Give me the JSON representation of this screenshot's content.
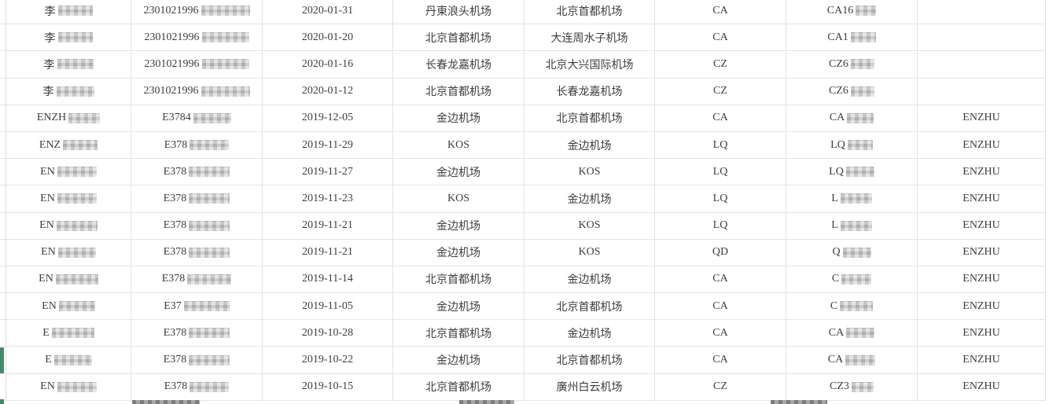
{
  "table": {
    "rows": [
      {
        "name_prefix": "李",
        "name_blur": 44,
        "id_prefix": "2301021996",
        "id_blur": 62,
        "date": "2020-01-31",
        "departure": "丹東浪头机场",
        "arrival": "北京首都机场",
        "airline": "CA",
        "flight_prefix": "CA16",
        "flight_blur": 26,
        "agent": ""
      },
      {
        "name_prefix": "李",
        "name_blur": 44,
        "id_prefix": "2301021996",
        "id_blur": 60,
        "date": "2020-01-20",
        "departure": "北京首都机场",
        "arrival": "大连周水子机场",
        "airline": "CA",
        "flight_prefix": "CA1",
        "flight_blur": 32,
        "agent": ""
      },
      {
        "name_prefix": "李",
        "name_blur": 46,
        "id_prefix": "2301021996",
        "id_blur": 60,
        "date": "2020-01-16",
        "departure": "长春龙嘉机场",
        "arrival": "北京大兴国际机场",
        "airline": "CZ",
        "flight_prefix": "CZ6",
        "flight_blur": 30,
        "agent": ""
      },
      {
        "name_prefix": "李",
        "name_blur": 48,
        "id_prefix": "2301021996",
        "id_blur": 62,
        "date": "2020-01-12",
        "departure": "北京首都机场",
        "arrival": "长春龙嘉机场",
        "airline": "CZ",
        "flight_prefix": "CZ6",
        "flight_blur": 30,
        "agent": ""
      },
      {
        "name_prefix": "ENZH",
        "name_blur": 40,
        "id_prefix": "E3784",
        "id_blur": 48,
        "date": "2019-12-05",
        "departure": "金边机场",
        "arrival": "北京首都机场",
        "airline": "CA",
        "flight_prefix": "CA",
        "flight_blur": 34,
        "agent": "ENZHU"
      },
      {
        "name_prefix": "ENZ",
        "name_blur": 44,
        "id_prefix": "E378",
        "id_blur": 50,
        "date": "2019-11-29",
        "departure": "KOS",
        "arrival": "金边机场",
        "airline": "LQ",
        "flight_prefix": "LQ",
        "flight_blur": 32,
        "agent": "ENZHU"
      },
      {
        "name_prefix": "EN",
        "name_blur": 50,
        "id_prefix": "E378",
        "id_blur": 52,
        "date": "2019-11-27",
        "departure": "金边机场",
        "arrival": "KOS",
        "airline": "LQ",
        "flight_prefix": "LQ",
        "flight_blur": 36,
        "agent": "ENZHU"
      },
      {
        "name_prefix": "EN",
        "name_blur": 50,
        "id_prefix": "E378",
        "id_blur": 52,
        "date": "2019-11-23",
        "departure": "KOS",
        "arrival": "金边机场",
        "airline": "LQ",
        "flight_prefix": "L",
        "flight_blur": 40,
        "agent": "ENZHU"
      },
      {
        "name_prefix": "EN",
        "name_blur": 52,
        "id_prefix": "E378",
        "id_blur": 52,
        "date": "2019-11-21",
        "departure": "金边机场",
        "arrival": "KOS",
        "airline": "LQ",
        "flight_prefix": "L",
        "flight_blur": 40,
        "agent": "ENZHU"
      },
      {
        "name_prefix": "EN",
        "name_blur": 48,
        "id_prefix": "E378",
        "id_blur": 52,
        "date": "2019-11-21",
        "departure": "金边机场",
        "arrival": "KOS",
        "airline": "QD",
        "flight_prefix": "Q",
        "flight_blur": 36,
        "agent": "ENZHU"
      },
      {
        "name_prefix": "EN",
        "name_blur": 54,
        "id_prefix": "E378",
        "id_blur": 56,
        "date": "2019-11-14",
        "departure": "北京首都机场",
        "arrival": "金边机场",
        "airline": "CA",
        "flight_prefix": "C",
        "flight_blur": 38,
        "agent": "ENZHU"
      },
      {
        "name_prefix": "EN",
        "name_blur": 46,
        "id_prefix": "E37",
        "id_blur": 58,
        "date": "2019-11-05",
        "departure": "金边机场",
        "arrival": "北京首都机场",
        "airline": "CA",
        "flight_prefix": "C",
        "flight_blur": 42,
        "agent": "ENZHU"
      },
      {
        "name_prefix": "E",
        "name_blur": 54,
        "id_prefix": "E378",
        "id_blur": 52,
        "date": "2019-10-28",
        "departure": "北京首都机场",
        "arrival": "金边机场",
        "airline": "CA",
        "flight_prefix": "CA",
        "flight_blur": 36,
        "agent": "ENZHU"
      },
      {
        "name_prefix": "E",
        "name_blur": 48,
        "id_prefix": "E378",
        "id_blur": 52,
        "date": "2019-10-22",
        "departure": "金边机场",
        "arrival": "北京首都机场",
        "airline": "CA",
        "flight_prefix": "CA",
        "flight_blur": 38,
        "agent": "ENZHU"
      },
      {
        "name_prefix": "EN",
        "name_blur": 50,
        "id_prefix": "E378",
        "id_blur": 50,
        "date": "2019-10-15",
        "departure": "北京首都机场",
        "arrival": "廣州白云机场",
        "airline": "CZ",
        "flight_prefix": "CZ3",
        "flight_blur": 28,
        "agent": "ENZHU"
      }
    ]
  },
  "selection": {
    "selected_row_index": 14,
    "marker_color": "#4a8768"
  },
  "colors": {
    "grid_line": "#e2e2e2",
    "text": "#3d3d3d",
    "redaction_light": "#d2d2d2",
    "redaction_dark": "#969696"
  }
}
